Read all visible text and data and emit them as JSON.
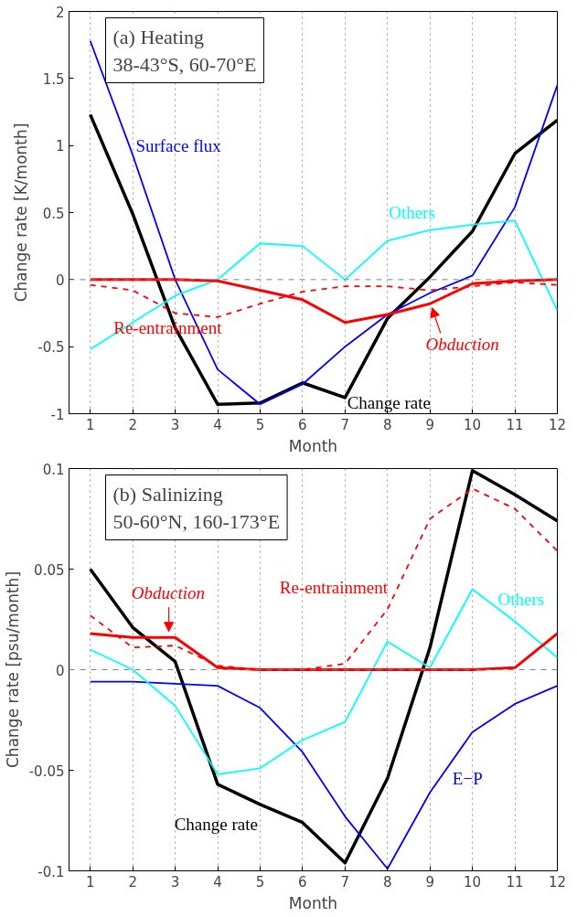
{
  "chart_data": [
    {
      "type": "line",
      "title": "(a) Heating",
      "subtitle": "38-43°S, 60-70°E",
      "xlabel": "Month",
      "ylabel": "Change rate [K/month]",
      "x": [
        1,
        2,
        3,
        4,
        5,
        6,
        7,
        8,
        9,
        10,
        11,
        12
      ],
      "xlim": [
        0.5,
        12
      ],
      "xticks": [
        1,
        2,
        3,
        4,
        5,
        6,
        7,
        8,
        9,
        10,
        11,
        12
      ],
      "ylim": [
        -1,
        2
      ],
      "yticks": [
        -1,
        -0.5,
        0,
        0.5,
        1,
        1.5,
        2
      ],
      "grid": "x",
      "ref_lines": [
        {
          "axis": "y",
          "value": 0,
          "color": "#808080",
          "line_style": "dashed"
        }
      ],
      "series": [
        {
          "name": "Change rate",
          "color": "#000000",
          "values": [
            1.23,
            0.49,
            -0.36,
            -0.93,
            -0.92,
            -0.77,
            -0.88,
            -0.29,
            0.02,
            0.36,
            0.94,
            1.19
          ]
        },
        {
          "name": "Surface flux",
          "color": "#0000ff",
          "values": [
            1.78,
            0.93,
            0.0,
            -0.67,
            -0.93,
            -0.78,
            -0.5,
            -0.26,
            -0.1,
            0.03,
            0.54,
            1.45
          ]
        },
        {
          "name": "Others",
          "color": "#00ffff",
          "values": [
            -0.52,
            -0.32,
            -0.12,
            0.0,
            0.27,
            0.25,
            0.0,
            0.29,
            0.37,
            0.41,
            0.44,
            -0.23
          ]
        },
        {
          "name": "Re-entrainment",
          "color": "#ff0000",
          "line_style": "dashed",
          "values": [
            -0.04,
            -0.08,
            -0.25,
            -0.28,
            -0.18,
            -0.09,
            -0.05,
            -0.05,
            -0.08,
            -0.05,
            -0.02,
            -0.04
          ]
        },
        {
          "name": "Obduction",
          "color": "#ff0000",
          "values": [
            0,
            0,
            0,
            -0.01,
            -0.08,
            -0.15,
            -0.32,
            -0.26,
            -0.18,
            -0.03,
            -0.01,
            0
          ]
        }
      ]
    },
    {
      "type": "line",
      "title": "(b) Salinizing",
      "subtitle": "50-60°N, 160-173°E",
      "xlabel": "Month",
      "ylabel": "Change rate [psu/month]",
      "x": [
        1,
        2,
        3,
        4,
        5,
        6,
        7,
        8,
        9,
        10,
        11,
        12
      ],
      "xlim": [
        0.5,
        12
      ],
      "xticks": [
        1,
        2,
        3,
        4,
        5,
        6,
        7,
        8,
        9,
        10,
        11,
        12
      ],
      "ylim": [
        -0.1,
        0.1
      ],
      "yticks": [
        -0.1,
        -0.05,
        0,
        0.05,
        0.1
      ],
      "grid": "x",
      "ref_lines": [
        {
          "axis": "y",
          "value": 0,
          "color": "#808080",
          "line_style": "dashed"
        }
      ],
      "series": [
        {
          "name": "Change rate",
          "color": "#000000",
          "values": [
            0.05,
            0.021,
            0.004,
            -0.057,
            -0.067,
            -0.076,
            -0.096,
            -0.054,
            0.011,
            0.099,
            0.087,
            0.074
          ]
        },
        {
          "name": "E−P",
          "color": "#0000ff",
          "values": [
            -0.006,
            -0.006,
            -0.007,
            -0.008,
            -0.019,
            -0.041,
            -0.073,
            -0.099,
            -0.061,
            -0.031,
            -0.017,
            -0.008
          ]
        },
        {
          "name": "Others",
          "color": "#00ffff",
          "values": [
            0.01,
            0,
            -0.018,
            -0.052,
            -0.049,
            -0.035,
            -0.026,
            0.014,
            0.001,
            0.04,
            0.024,
            0.006
          ]
        },
        {
          "name": "Re-entrainment",
          "color": "#ff0000",
          "line_style": "dashed",
          "values": [
            0.027,
            0.011,
            0.012,
            0.002,
            0,
            0,
            0.003,
            0.03,
            0.075,
            0.09,
            0.08,
            0.059
          ]
        },
        {
          "name": "Obduction",
          "color": "#ff0000",
          "values": [
            0.018,
            0.016,
            0.016,
            0.001,
            0,
            0,
            0,
            0,
            0,
            0,
            0.001,
            0.018
          ]
        }
      ]
    }
  ]
}
